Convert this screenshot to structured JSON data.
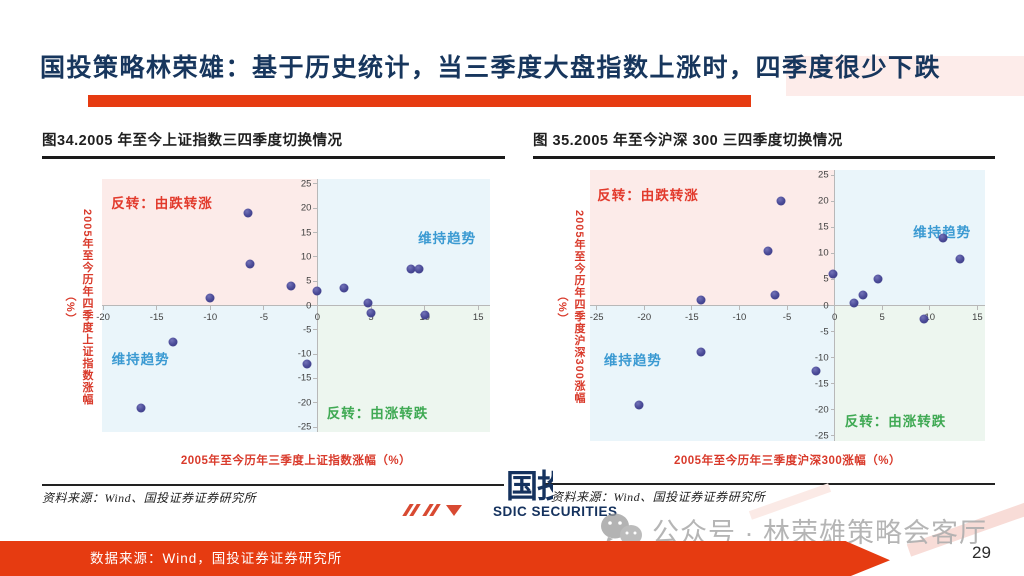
{
  "slide": {
    "title": "国投策略林荣雄：基于历史统计，当三季度大盘指数上涨时，四季度很少下跌",
    "page_number": "29",
    "footer_source": "数据来源：Wind，国投证券证券研究所",
    "watermark": "公众号 · 林荣雄策略会客厅",
    "logo_cn": "国投",
    "logo_en": "SDIC SECURITIES",
    "icons": {
      "wechat": "wechat-bubbles-icon",
      "red_marks": "double-slash-and-triangle"
    },
    "colors": {
      "accent_red": "#e63b11",
      "title_navy": "#17365d",
      "chart_text_red": "#d93a2b",
      "quad_pink": "#fcebe9",
      "quad_blue": "#eaf5fa",
      "quad_green": "#edf6ef",
      "axis_gray": "#b8b8b8",
      "dot_indigo": "#4a4a97",
      "label_red": "#e23a2c",
      "label_blue": "#3b9ad2",
      "label_green": "#3fa953"
    }
  },
  "charts": [
    {
      "figure_title": "图34.2005 年至今上证指数三四季度切换情况",
      "source": "资料来源：Wind、国投证券证券研究所",
      "chart_data": {
        "type": "scatter",
        "xlabel": "2005年至今历年三季度上证指数涨幅（%）",
        "ylabel_main": "2005年至今历年四季度上证指数涨幅",
        "ylabel_unit": "（%）",
        "xlim": [
          -20.1,
          16.1
        ],
        "ylim": [
          -26,
          26
        ],
        "x_ticks": [
          -20,
          -15,
          -10,
          -5,
          0,
          5,
          10,
          15
        ],
        "y_ticks": [
          25,
          20,
          15,
          10,
          5,
          0,
          -5,
          -10,
          -15,
          -20,
          -25
        ],
        "grid": false,
        "points": [
          [
            -6.5,
            19
          ],
          [
            -6.3,
            8.5
          ],
          [
            -10,
            1.5
          ],
          [
            -2.5,
            4
          ],
          [
            0,
            3
          ],
          [
            2.5,
            3.5
          ],
          [
            4.7,
            0.5
          ],
          [
            5,
            -1.5
          ],
          [
            8.7,
            7.5
          ],
          [
            9.5,
            7.5
          ],
          [
            10,
            -2
          ],
          [
            -13.5,
            -7.5
          ],
          [
            -1,
            -12
          ],
          [
            -16.5,
            -21
          ]
        ],
        "quadrant_labels": [
          {
            "text": "反转：由跌转涨",
            "x": -14.5,
            "y": 21.3,
            "color": "red"
          },
          {
            "text": "维持趋势",
            "x": 12.1,
            "y": 14,
            "color": "blue"
          },
          {
            "text": "维持趋势",
            "x": -16.5,
            "y": -10.8,
            "color": "blue"
          },
          {
            "text": "反转：由涨转跌",
            "x": 5.6,
            "y": -21.9,
            "color": "green"
          }
        ]
      }
    },
    {
      "figure_title": "图 35.2005 年至今沪深 300 三四季度切换情况",
      "source": "资料来源：Wind、国投证券证券研究所",
      "chart_data": {
        "type": "scatter",
        "xlabel": "2005年至今历年三季度沪深300涨幅（%）",
        "ylabel_main": "2005年至今历年四季度沪深300涨幅",
        "ylabel_unit": "（%）",
        "xlim": [
          -25.7,
          15.8
        ],
        "ylim": [
          -26,
          26
        ],
        "x_ticks": [
          -25,
          -20,
          -15,
          -10,
          -5,
          0,
          5,
          10,
          15
        ],
        "y_ticks": [
          25,
          20,
          15,
          10,
          5,
          0,
          -5,
          -10,
          -15,
          -20,
          -25
        ],
        "grid": false,
        "points": [
          [
            -5.6,
            20
          ],
          [
            -7,
            10.5
          ],
          [
            -6.3,
            2
          ],
          [
            -14,
            1
          ],
          [
            -0.2,
            6
          ],
          [
            2,
            0.5
          ],
          [
            3,
            2
          ],
          [
            4.6,
            5
          ],
          [
            11.4,
            13
          ],
          [
            13.2,
            9
          ],
          [
            9.4,
            -2.5
          ],
          [
            -14,
            -9
          ],
          [
            -2,
            -12.5
          ],
          [
            -20.5,
            -19
          ]
        ],
        "quadrant_labels": [
          {
            "text": "反转：由跌转涨",
            "x": -19.6,
            "y": 21.4,
            "color": "red"
          },
          {
            "text": "维持趋势",
            "x": 11.3,
            "y": 14.3,
            "color": "blue"
          },
          {
            "text": "维持趋势",
            "x": -21.2,
            "y": -10.3,
            "color": "blue"
          },
          {
            "text": "反转：由涨转跌",
            "x": 6.4,
            "y": -22,
            "color": "green"
          }
        ]
      }
    }
  ]
}
